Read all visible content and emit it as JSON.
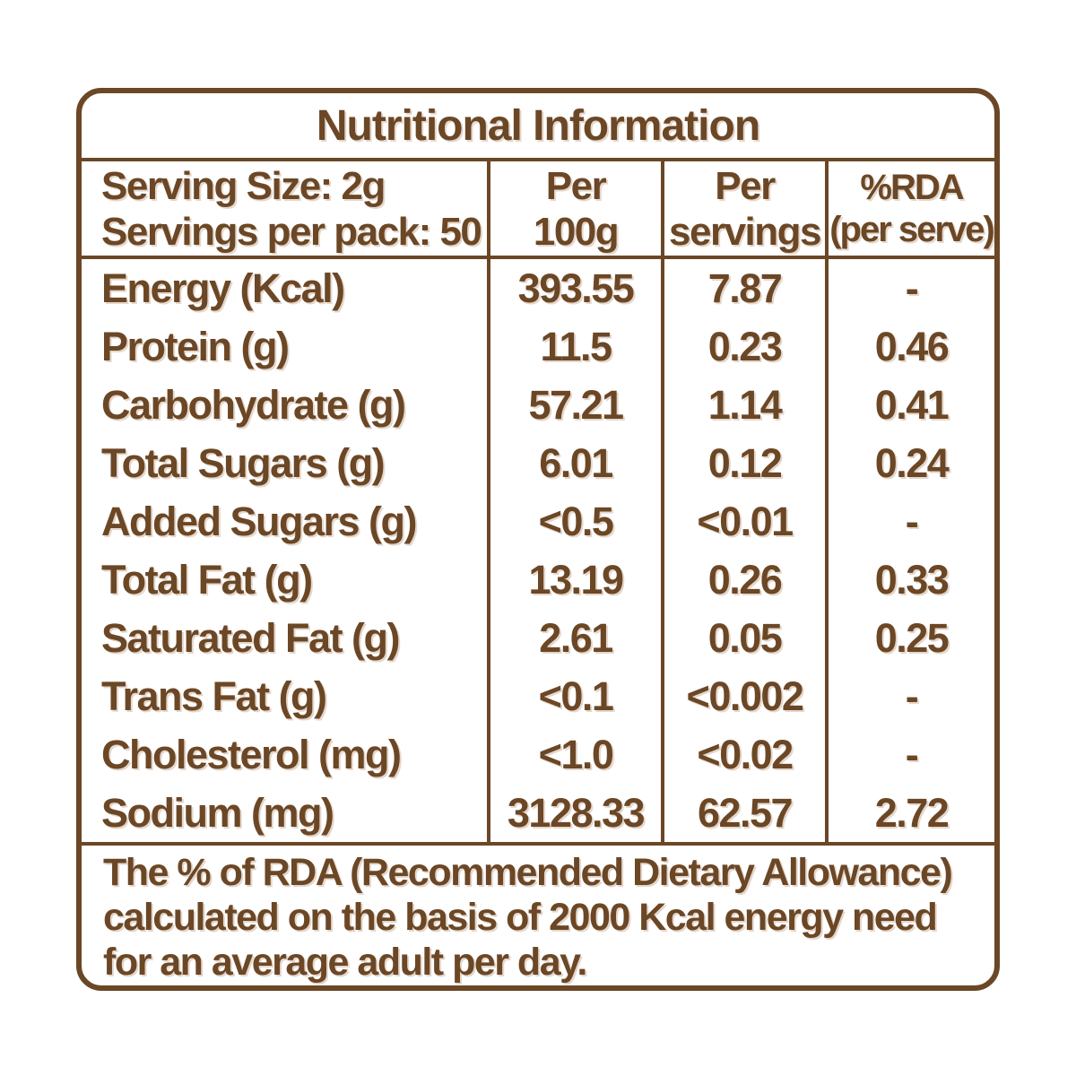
{
  "colors": {
    "text": "#6b4726",
    "background": "#ffffff"
  },
  "title": "Nutritional Information",
  "header": {
    "serving_info": "Serving Size: 2g\nServings per pack: 50",
    "columns": [
      "Per\n100g",
      "Per\nservings",
      "%RDA\n(per serve)"
    ]
  },
  "rows": [
    {
      "label": "Energy (Kcal)",
      "per_100g": "393.55",
      "per_serving": "7.87",
      "rda": "-"
    },
    {
      "label": "Protein (g)",
      "per_100g": "11.5",
      "per_serving": "0.23",
      "rda": "0.46"
    },
    {
      "label": "Carbohydrate (g)",
      "per_100g": "57.21",
      "per_serving": "1.14",
      "rda": "0.41"
    },
    {
      "label": "Total Sugars (g)",
      "per_100g": "6.01",
      "per_serving": "0.12",
      "rda": "0.24"
    },
    {
      "label": "Added Sugars (g)",
      "per_100g": "<0.5",
      "per_serving": "<0.01",
      "rda": "-"
    },
    {
      "label": "Total Fat (g)",
      "per_100g": "13.19",
      "per_serving": "0.26",
      "rda": "0.33"
    },
    {
      "label": "Saturated Fat (g)",
      "per_100g": "2.61",
      "per_serving": "0.05",
      "rda": "0.25"
    },
    {
      "label": "Trans Fat (g)",
      "per_100g": "<0.1",
      "per_serving": "<0.002",
      "rda": "-"
    },
    {
      "label": "Cholesterol (mg)",
      "per_100g": "<1.0",
      "per_serving": "<0.02",
      "rda": "-"
    },
    {
      "label": "Sodium (mg)",
      "per_100g": "3128.33",
      "per_serving": "62.57",
      "rda": "2.72"
    }
  ],
  "footer": "The % of RDA (Recommended Dietary Allowance)\ncalculated on the basis of 2000 Kcal energy need\nfor an average adult per day."
}
